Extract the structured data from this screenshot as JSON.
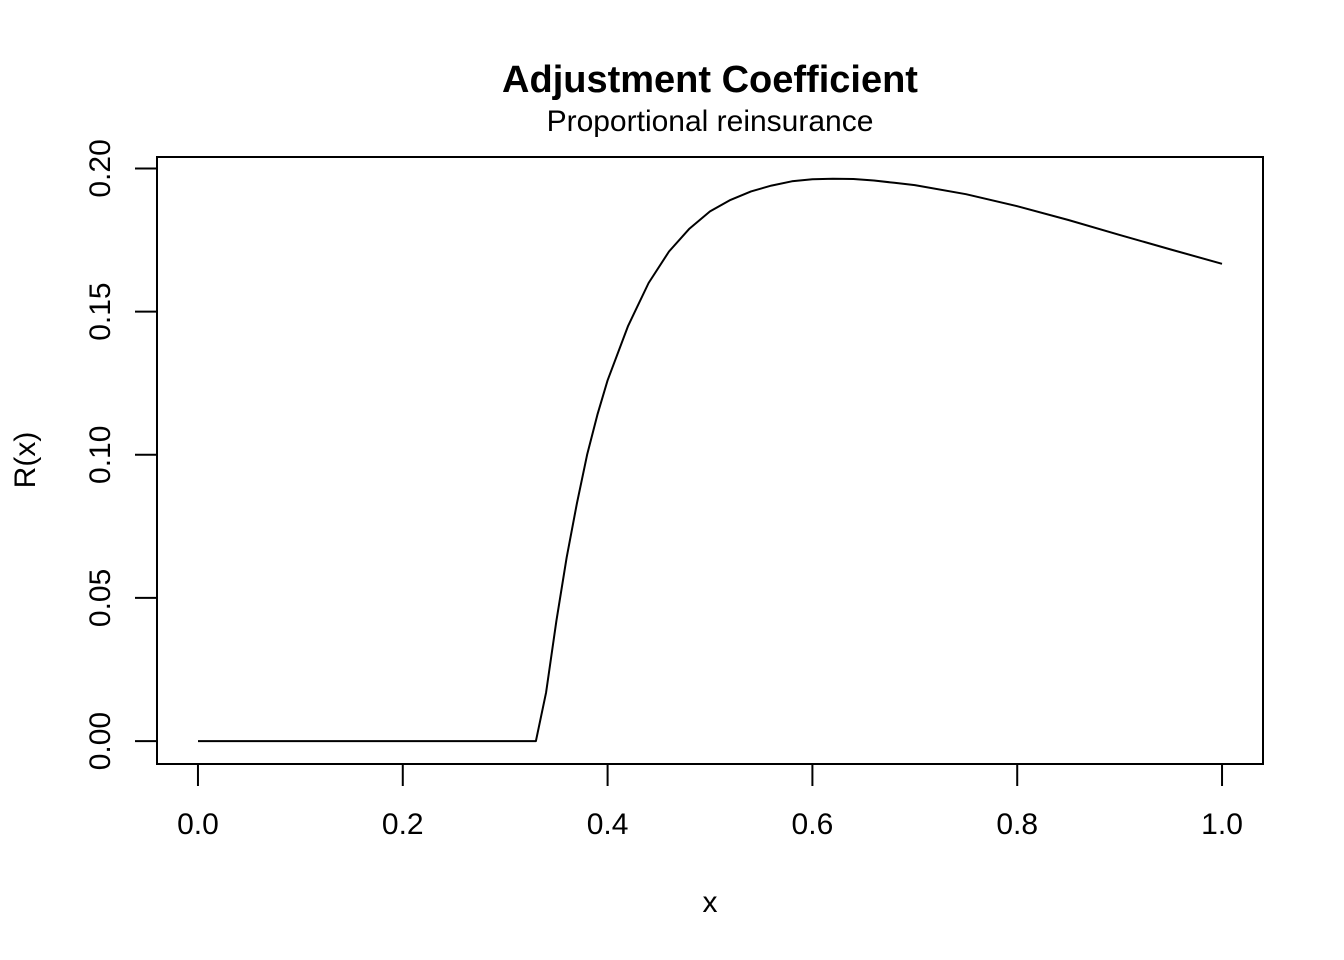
{
  "chart_data": {
    "type": "line",
    "title": "Adjustment Coefficient",
    "subtitle": "Proportional reinsurance",
    "xlabel": "x",
    "ylabel": "R(x)",
    "xlim": [
      -0.04,
      1.04
    ],
    "ylim": [
      -0.008,
      0.204
    ],
    "x_ticks": [
      0.0,
      0.2,
      0.4,
      0.6,
      0.8,
      1.0
    ],
    "x_tick_labels": [
      "0.0",
      "0.2",
      "0.4",
      "0.6",
      "0.8",
      "1.0"
    ],
    "y_ticks": [
      0.0,
      0.05,
      0.1,
      0.15,
      0.2
    ],
    "y_tick_labels": [
      "0.00",
      "0.05",
      "0.10",
      "0.15",
      "0.20"
    ],
    "grid": false,
    "legend": "none",
    "series": [
      {
        "color": "#000000",
        "x": [
          0.0,
          0.05,
          0.1,
          0.15,
          0.2,
          0.25,
          0.3,
          0.33,
          0.34,
          0.35,
          0.36,
          0.37,
          0.38,
          0.39,
          0.4,
          0.42,
          0.44,
          0.46,
          0.48,
          0.5,
          0.52,
          0.54,
          0.56,
          0.58,
          0.6,
          0.62,
          0.64,
          0.66,
          0.68,
          0.7,
          0.75,
          0.8,
          0.85,
          0.9,
          0.95,
          1.0
        ],
        "y": [
          0.0,
          0.0,
          0.0,
          0.0,
          0.0,
          0.0,
          0.0,
          0.0,
          0.017,
          0.042,
          0.064,
          0.083,
          0.1,
          0.114,
          0.126,
          0.145,
          0.16,
          0.171,
          0.179,
          0.185,
          0.189,
          0.192,
          0.194,
          0.1955,
          0.1962,
          0.1964,
          0.1963,
          0.1958,
          0.195,
          0.1942,
          0.191,
          0.1868,
          0.182,
          0.1768,
          0.1717,
          0.1667
        ]
      }
    ]
  }
}
